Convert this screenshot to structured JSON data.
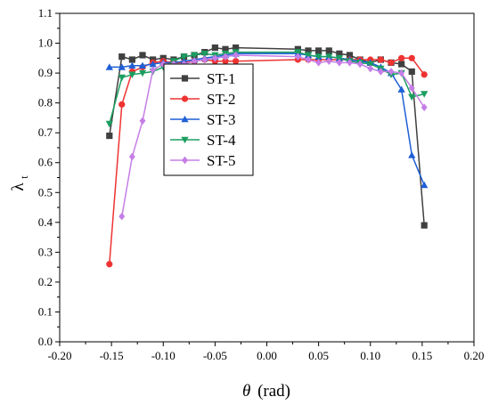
{
  "chart_data": {
    "type": "line",
    "title": "",
    "xlabel": "θ (rad)",
    "xlabel_symbol": "θ",
    "xlabel_unit": "(rad)",
    "ylabel": "λt",
    "ylabel_symbol": "λ",
    "ylabel_sub": "t",
    "xlim": [
      -0.2,
      0.2
    ],
    "ylim": [
      0.0,
      1.1
    ],
    "xticks": [
      -0.2,
      -0.15,
      -0.1,
      -0.05,
      0.0,
      0.05,
      0.1,
      0.15,
      0.2
    ],
    "xtick_labels": [
      "-0.20",
      "-0.15",
      "-0.10",
      "-0.05",
      "0.00",
      "0.05",
      "0.10",
      "0.15",
      "0.20"
    ],
    "yticks": [
      0.0,
      0.1,
      0.2,
      0.3,
      0.4,
      0.5,
      0.6,
      0.7,
      0.8,
      0.9,
      1.0,
      1.1
    ],
    "ytick_labels": [
      "0.0",
      "0.1",
      "0.2",
      "0.3",
      "0.4",
      "0.5",
      "0.6",
      "0.7",
      "0.8",
      "0.9",
      "1.0",
      "1.1"
    ],
    "grid": false,
    "legend_position": "upper-left inside",
    "series": [
      {
        "name": "ST-1",
        "color": "#404040",
        "marker": "square",
        "x": [
          -0.152,
          -0.14,
          -0.13,
          -0.12,
          -0.11,
          -0.1,
          -0.09,
          -0.08,
          -0.07,
          -0.06,
          -0.05,
          -0.04,
          -0.03,
          0.03,
          0.04,
          0.05,
          0.06,
          0.07,
          0.08,
          0.09,
          0.1,
          0.11,
          0.12,
          0.13,
          0.14,
          0.152
        ],
        "y": [
          0.69,
          0.955,
          0.945,
          0.96,
          0.945,
          0.95,
          0.945,
          0.955,
          0.96,
          0.97,
          0.985,
          0.98,
          0.985,
          0.98,
          0.975,
          0.975,
          0.975,
          0.965,
          0.96,
          0.945,
          0.935,
          0.945,
          0.935,
          0.93,
          0.905,
          0.39
        ]
      },
      {
        "name": "ST-2",
        "color": "#ee3333",
        "marker": "circle",
        "x": [
          -0.152,
          -0.14,
          -0.13,
          -0.12,
          -0.11,
          -0.1,
          -0.09,
          -0.08,
          -0.07,
          -0.06,
          -0.05,
          -0.04,
          -0.03,
          0.03,
          0.04,
          0.05,
          0.06,
          0.07,
          0.08,
          0.09,
          0.1,
          0.11,
          0.12,
          0.13,
          0.14,
          0.152
        ],
        "y": [
          0.26,
          0.795,
          0.905,
          0.92,
          0.935,
          0.94,
          0.935,
          0.935,
          0.94,
          0.945,
          0.94,
          0.94,
          0.94,
          0.945,
          0.945,
          0.945,
          0.945,
          0.945,
          0.945,
          0.945,
          0.945,
          0.945,
          0.935,
          0.95,
          0.95,
          0.895
        ]
      },
      {
        "name": "ST-3",
        "color": "#1f5fd6",
        "marker": "triangle-up",
        "x": [
          -0.152,
          -0.14,
          -0.13,
          -0.12,
          -0.11,
          -0.1,
          -0.09,
          -0.08,
          -0.07,
          -0.06,
          -0.05,
          -0.04,
          -0.03,
          0.03,
          0.04,
          0.05,
          0.06,
          0.07,
          0.08,
          0.09,
          0.1,
          0.11,
          0.12,
          0.13,
          0.14,
          0.152
        ],
        "y": [
          0.92,
          0.92,
          0.925,
          0.925,
          0.93,
          0.935,
          0.935,
          0.94,
          0.945,
          0.95,
          0.955,
          0.96,
          0.965,
          0.965,
          0.96,
          0.955,
          0.955,
          0.95,
          0.945,
          0.94,
          0.935,
          0.92,
          0.9,
          0.845,
          0.625,
          0.525
        ]
      },
      {
        "name": "ST-4",
        "color": "#1a9e60",
        "marker": "triangle-down",
        "x": [
          -0.152,
          -0.14,
          -0.13,
          -0.12,
          -0.11,
          -0.1,
          -0.09,
          -0.08,
          -0.07,
          -0.06,
          -0.05,
          -0.04,
          -0.03,
          0.03,
          0.04,
          0.05,
          0.06,
          0.07,
          0.08,
          0.09,
          0.1,
          0.11,
          0.12,
          0.13,
          0.14,
          0.152
        ],
        "y": [
          0.73,
          0.885,
          0.895,
          0.9,
          0.905,
          0.92,
          0.94,
          0.955,
          0.96,
          0.965,
          0.96,
          0.965,
          0.97,
          0.97,
          0.96,
          0.955,
          0.955,
          0.95,
          0.94,
          0.935,
          0.93,
          0.915,
          0.895,
          0.9,
          0.82,
          0.83
        ]
      },
      {
        "name": "ST-5",
        "color": "#c57ee6",
        "marker": "diamond",
        "x": [
          -0.14,
          -0.13,
          -0.12,
          -0.11,
          -0.1,
          -0.09,
          -0.08,
          -0.07,
          -0.06,
          -0.05,
          -0.04,
          -0.03,
          0.03,
          0.04,
          0.05,
          0.06,
          0.07,
          0.08,
          0.09,
          0.1,
          0.11,
          0.12,
          0.13,
          0.14,
          0.152
        ],
        "y": [
          0.42,
          0.62,
          0.74,
          0.91,
          0.93,
          0.93,
          0.93,
          0.94,
          0.945,
          0.95,
          0.955,
          0.96,
          0.955,
          0.945,
          0.935,
          0.94,
          0.935,
          0.935,
          0.93,
          0.915,
          0.905,
          0.905,
          0.9,
          0.85,
          0.785
        ]
      }
    ]
  }
}
